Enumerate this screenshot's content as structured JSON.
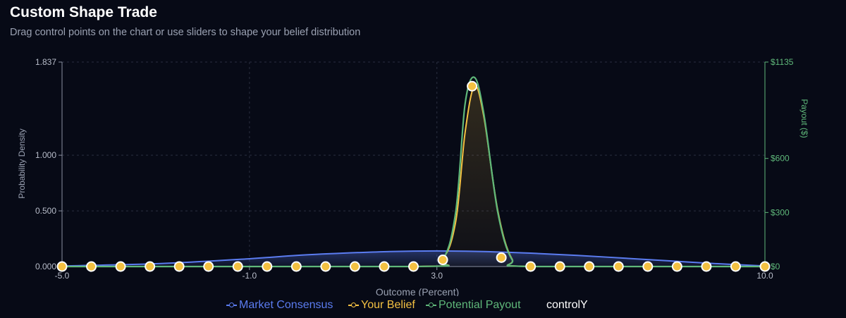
{
  "header": {
    "title": "Custom Shape Trade",
    "subtitle": "Drag control points on the chart or use sliders to shape your belief distribution"
  },
  "legend": {
    "items": [
      {
        "label": "Market Consensus",
        "color": "#5b7cf0"
      },
      {
        "label": "Your Belief",
        "color": "#f4c142"
      },
      {
        "label": "Potential Payout",
        "color": "#5fb87a"
      }
    ],
    "extra_label": "controlY"
  },
  "chart_data": {
    "type": "line",
    "xlabel": "Outcome (Percent)",
    "ylabel": "Probability Density",
    "y2label": "Payout ($)",
    "xlim": [
      -5.0,
      10.0
    ],
    "ylim": [
      0,
      1.837
    ],
    "y2lim": [
      0,
      1135
    ],
    "x_ticks": [
      "-5.0",
      "-1.0",
      "3.0",
      "10.0"
    ],
    "x_tick_values": [
      -5.0,
      -1.0,
      3.0,
      10.0
    ],
    "y_ticks": [
      "0.000",
      "0.500",
      "1.000",
      "1.837"
    ],
    "y_tick_values": [
      0,
      0.5,
      1.0,
      1.837
    ],
    "y2_ticks": [
      "$0",
      "$300",
      "$600",
      "$1135"
    ],
    "y2_tick_values": [
      0,
      300,
      600,
      1135
    ],
    "grid": true,
    "series": [
      {
        "name": "Market Consensus",
        "color": "#5b7cf0",
        "x": [
          -5.0,
          -3.0,
          -1.0,
          0.0,
          1.0,
          2.0,
          3.0,
          4.0,
          5.0,
          6.0,
          7.0,
          8.0,
          9.0,
          10.0
        ],
        "values": [
          0.005,
          0.025,
          0.07,
          0.1,
          0.12,
          0.135,
          0.14,
          0.135,
          0.12,
          0.1,
          0.075,
          0.05,
          0.025,
          0.005
        ]
      },
      {
        "name": "Your Belief",
        "color": "#f4c142",
        "x": [
          -5.0,
          2.5,
          3.1,
          3.4,
          3.6,
          3.8,
          4.0,
          4.3,
          4.6,
          5.0,
          10.0
        ],
        "values": [
          0.0,
          0.0,
          0.06,
          0.4,
          1.2,
          1.62,
          1.35,
          0.5,
          0.07,
          0.0,
          0.0
        ]
      },
      {
        "name": "Potential Payout",
        "color": "#5fb87a",
        "x": [
          -5.0,
          2.5,
          3.1,
          3.4,
          3.6,
          3.8,
          4.0,
          4.3,
          4.6,
          5.0,
          10.0
        ],
        "values": [
          0,
          0,
          30,
          300,
          900,
          1050,
          850,
          300,
          40,
          0,
          0
        ]
      }
    ],
    "control_points": {
      "x": [
        -5.0,
        -4.375,
        -3.75,
        -3.125,
        -2.5,
        -1.875,
        -1.25,
        -0.625,
        0.0,
        0.625,
        1.25,
        1.875,
        2.5,
        3.125,
        3.75,
        4.375,
        5.0,
        5.625,
        6.25,
        6.875,
        7.5,
        8.125,
        8.75,
        9.375,
        10.0
      ],
      "values": [
        0,
        0,
        0,
        0,
        0,
        0,
        0,
        0,
        0,
        0,
        0,
        0,
        0,
        0.06,
        1.62,
        0.08,
        0,
        0,
        0,
        0,
        0,
        0,
        0,
        0,
        0
      ]
    }
  }
}
